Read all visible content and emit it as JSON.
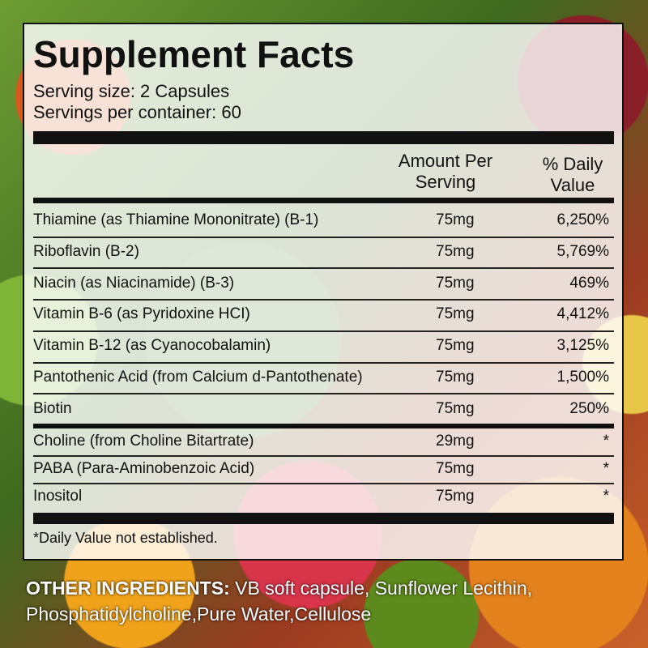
{
  "label": {
    "title": "Supplement Facts",
    "serving_size": "Serving size: 2 Capsules",
    "servings_per_container": "Servings per container: 60",
    "columns": {
      "amount": "Amount Per Serving",
      "daily_value": "% Daily Value"
    },
    "groups": [
      [
        {
          "name": "Thiamine (as Thiamine Mononitrate) (B-1)",
          "amount": "75mg",
          "daily_value": "6,250%"
        },
        {
          "name": "Riboflavin (B-2)",
          "amount": "75mg",
          "daily_value": "5,769%"
        },
        {
          "name": "Niacin (as Niacinamide) (B-3)",
          "amount": "75mg",
          "daily_value": "469%"
        },
        {
          "name": "Vitamin B-6 (as Pyridoxine HCI)",
          "amount": "75mg",
          "daily_value": "4,412%"
        },
        {
          "name": "Vitamin B-12 (as Cyanocobalamin)",
          "amount": "75mg",
          "daily_value": "3,125%"
        },
        {
          "name": "Pantothenic Acid (from Calcium d-Pantothenate)",
          "amount": "75mg",
          "daily_value": "1,500%"
        },
        {
          "name": "Biotin",
          "amount": "75mg",
          "daily_value": "250%"
        }
      ],
      [
        {
          "name": "Choline (from Choline Bitartrate)",
          "amount": "29mg",
          "daily_value": "*"
        },
        {
          "name": "PABA (Para-Aminobenzoic Acid)",
          "amount": "75mg",
          "daily_value": "*"
        },
        {
          "name": "Inositol",
          "amount": "75mg",
          "daily_value": "*"
        }
      ]
    ],
    "footnote": "*Daily Value not established."
  },
  "other_ingredients": {
    "label": "OTHER INGREDIENTS:",
    "text": "VB soft capsule, Sunflower Lecithin, Phosphatidylcholine,Pure Water,Cellulose"
  }
}
